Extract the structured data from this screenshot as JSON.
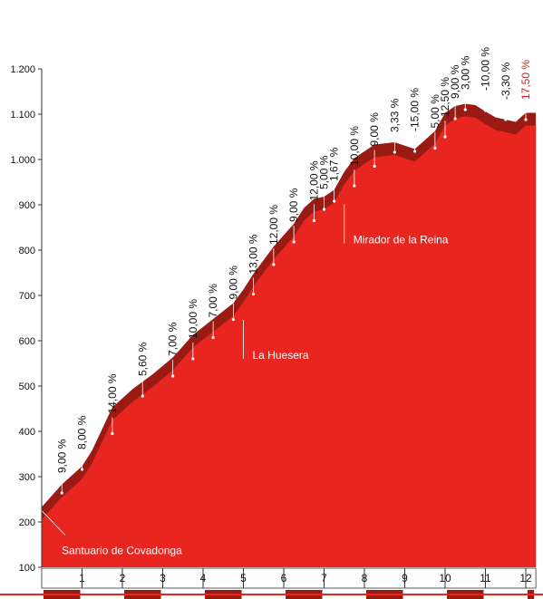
{
  "chart_data": {
    "type": "area",
    "title": "",
    "xlabel": "",
    "ylabel": "",
    "xlim": [
      0,
      12.25
    ],
    "ylim": [
      100,
      1200
    ],
    "y_ticks": [
      100,
      200,
      300,
      400,
      500,
      600,
      700,
      800,
      900,
      1000,
      1100,
      1200
    ],
    "y_tick_labels": [
      "100",
      "200",
      "300",
      "400",
      "500",
      "600",
      "700",
      "800",
      "900",
      "1.000",
      "1.100",
      "1.200"
    ],
    "x_ticks": [
      1,
      2,
      3,
      4,
      5,
      6,
      7,
      8,
      9,
      10,
      11,
      12
    ],
    "x_tick_labels": [
      "1",
      "2",
      "3",
      "4",
      "5",
      "6",
      "7",
      "8",
      "9",
      "10",
      "11",
      "12"
    ],
    "grid": false,
    "colors": {
      "fill": "#e8261f",
      "ribbon": "#9a1a14",
      "final_grade": "#e01b1b",
      "axis_text": "#111111"
    },
    "profile": {
      "x": [
        0,
        0.5,
        1.0,
        1.25,
        1.75,
        2.25,
        2.75,
        3.25,
        3.75,
        4.25,
        4.75,
        5.0,
        5.25,
        5.5,
        5.75,
        6.25,
        6.5,
        6.75,
        7.0,
        7.25,
        7.5,
        7.75,
        8.25,
        8.75,
        9.25,
        9.5,
        9.75,
        10.0,
        10.25,
        10.5,
        10.75,
        11.0,
        11.25,
        11.5,
        11.75,
        12.0,
        12.25
      ],
      "y": [
        205,
        255,
        295,
        330,
        425,
        465,
        498,
        535,
        585,
        620,
        655,
        685,
        720,
        750,
        780,
        830,
        865,
        885,
        890,
        905,
        945,
        975,
        1005,
        1010,
        995,
        1015,
        1035,
        1075,
        1090,
        1095,
        1092,
        1078,
        1065,
        1060,
        1055,
        1075,
        1075
      ]
    },
    "segments": [
      {
        "km": 0.5,
        "elevation": 264,
        "grade": "9,00 %"
      },
      {
        "km": 1.0,
        "elevation": 316,
        "grade": "8,00 %"
      },
      {
        "km": 1.75,
        "elevation": 395,
        "grade": "14,00 %"
      },
      {
        "km": 2.5,
        "elevation": 478,
        "grade": "5,60 %"
      },
      {
        "km": 3.25,
        "elevation": 522,
        "grade": "7,00 %"
      },
      {
        "km": 3.75,
        "elevation": 560,
        "grade": "10,00 %"
      },
      {
        "km": 4.25,
        "elevation": 607,
        "grade": "7,00 %"
      },
      {
        "km": 4.75,
        "elevation": 647,
        "grade": "9,00 %"
      },
      {
        "km": 5.25,
        "elevation": 703,
        "grade": "13,00 %"
      },
      {
        "km": 5.75,
        "elevation": 768,
        "grade": "12,00 %"
      },
      {
        "km": 6.25,
        "elevation": 818,
        "grade": "9,00 %"
      },
      {
        "km": 6.75,
        "elevation": 865,
        "grade": "12,00 %"
      },
      {
        "km": 7.0,
        "elevation": 890,
        "grade": "5,00 %"
      },
      {
        "km": 7.25,
        "elevation": 908,
        "grade": "1,67 %"
      },
      {
        "km": 7.75,
        "elevation": 942,
        "grade": "10,00 %"
      },
      {
        "km": 8.25,
        "elevation": 985,
        "grade": "9,00 %"
      },
      {
        "km": 8.75,
        "elevation": 1016,
        "grade": "3,33 %"
      },
      {
        "km": 9.25,
        "elevation": 1018,
        "grade": "-15,00 %"
      },
      {
        "km": 9.75,
        "elevation": 1025,
        "grade": "5,00 %"
      },
      {
        "km": 10.0,
        "elevation": 1050,
        "grade": "12,50 %"
      },
      {
        "km": 10.25,
        "elevation": 1090,
        "grade": "9,00 %"
      },
      {
        "km": 10.5,
        "elevation": 1110,
        "grade": "3,00 %"
      },
      {
        "km": 11.0,
        "elevation": 1108,
        "grade": "-10,00 %"
      },
      {
        "km": 11.5,
        "elevation": 1088,
        "grade": "-3,30 %"
      },
      {
        "km": 12.0,
        "elevation": 1088,
        "grade": "17,50 %",
        "highlight": true
      }
    ],
    "landmarks": [
      {
        "name": "Santuario de Covadonga",
        "km": 0.0,
        "elevation": 215
      },
      {
        "name": "La Huesera",
        "km": 5.0,
        "elevation": 650
      },
      {
        "name": "Mirador de la Reina",
        "km": 7.5,
        "elevation": 905
      }
    ]
  }
}
